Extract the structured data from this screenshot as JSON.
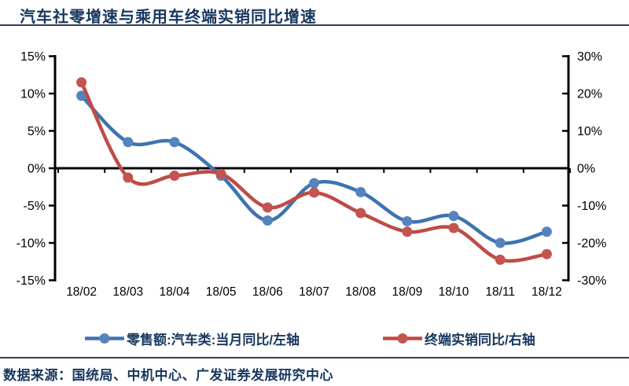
{
  "page": {
    "source": "数据来源：国统局、中机中心、广发证券发展研究中心"
  },
  "colors": {
    "title_text": "#17375E",
    "axis": "#000000",
    "rule": "#2e3d55",
    "series_blue": "#3E73B1",
    "series_red": "#BE4B47"
  },
  "chart_data": {
    "type": "line",
    "title": "汽车社零增速与乘用车终端实销同比增速",
    "categories": [
      "18/02",
      "18/03",
      "18/04",
      "18/05",
      "18/06",
      "18/07",
      "18/08",
      "18/09",
      "18/10",
      "18/11",
      "18/12"
    ],
    "series": [
      {
        "name": "零售额:汽车类:当月同比/左轴",
        "axis": "left",
        "color": "#3E73B1",
        "marker_color": "#5583BE",
        "values": [
          9.7,
          3.5,
          3.5,
          -1.0,
          -7.0,
          -2.0,
          -3.2,
          -7.1,
          -6.4,
          -10.0,
          -8.5
        ]
      },
      {
        "name": "终端实销同比/右轴",
        "axis": "right",
        "color": "#BE4B47",
        "marker_color": "#C4544F",
        "values": [
          23,
          -2.5,
          -2.0,
          -1.5,
          -10.5,
          -6.5,
          -12.0,
          -17.0,
          -16.0,
          -24.5,
          -23.0
        ]
      }
    ],
    "left_axis": {
      "tick_labels": [
        "15%",
        "10%",
        "5%",
        "0%",
        "-5%",
        "-10%",
        "-15%"
      ],
      "tick_values": [
        15,
        10,
        5,
        0,
        -5,
        -10,
        -15
      ],
      "range": [
        -15,
        15
      ]
    },
    "right_axis": {
      "tick_labels": [
        "30%",
        "20%",
        "10%",
        "0%",
        "-10%",
        "-20%",
        "-30%"
      ],
      "tick_values": [
        30,
        20,
        10,
        0,
        -10,
        -20,
        -30
      ],
      "range": [
        -30,
        30
      ]
    },
    "grid": false,
    "legend_position": "bottom",
    "smooth_lines": true
  }
}
